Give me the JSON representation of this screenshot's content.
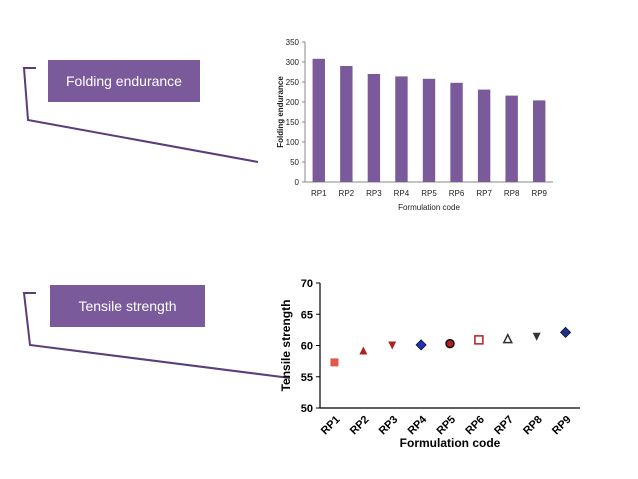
{
  "labels": {
    "folding": "Folding endurance",
    "tensile": "Tensile strength"
  },
  "colors": {
    "label_bg": "#7b5a9b",
    "bar_fill": "#7b5a9b",
    "connector": "#5a3d7a"
  },
  "chart_data": [
    {
      "type": "bar",
      "title": "",
      "xlabel": "Formulation code",
      "ylabel": "Folding endurance",
      "categories": [
        "RP1",
        "RP2",
        "RP3",
        "RP4",
        "RP5",
        "RP6",
        "RP7",
        "RP8",
        "RP9"
      ],
      "values": [
        308,
        290,
        270,
        264,
        258,
        248,
        231,
        216,
        204
      ],
      "ylim": [
        0,
        350
      ],
      "yticks": [
        0,
        50,
        100,
        150,
        200,
        250,
        300,
        350
      ]
    },
    {
      "type": "scatter",
      "title": "",
      "xlabel": "Formulation code",
      "ylabel": "Tensile strength",
      "categories": [
        "RP1",
        "RP2",
        "RP3",
        "RP4",
        "RP5",
        "RP6",
        "RP7",
        "RP8",
        "RP9"
      ],
      "values": [
        57.3,
        59.2,
        60.0,
        60.1,
        60.3,
        60.9,
        61.1,
        61.4,
        62.1
      ],
      "markers": [
        "square",
        "triangle-up",
        "triangle-down",
        "diamond",
        "circle",
        "square-open",
        "triangle-up-open",
        "triangle-down",
        "diamond"
      ],
      "marker_colors": [
        "#e05a4a",
        "#b02020",
        "#b02020",
        "#1f2fbf",
        "#b02020",
        "#b02020",
        "#333333",
        "#333333",
        "#1f2f8f"
      ],
      "ylim": [
        50,
        70
      ],
      "yticks": [
        50,
        55,
        60,
        65,
        70
      ]
    }
  ]
}
